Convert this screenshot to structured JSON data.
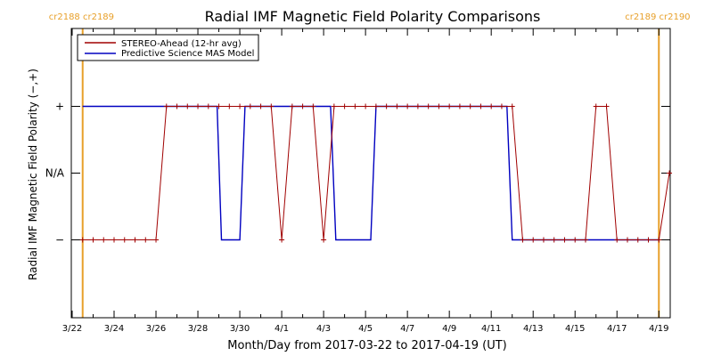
{
  "chart_data": {
    "type": "line",
    "title": "Radial IMF Magnetic Field Polarity Comparisons",
    "xlabel": "Month/Day from 2017-03-22 to 2017-04-19 (UT)",
    "ylabel": "Radial IMF Magnetic Field Polarity (−,+)",
    "x_range": [
      "2017-03-21T23:00",
      "2017-04-19T13:00"
    ],
    "y_levels": [
      "−",
      "N/A",
      "+"
    ],
    "y_range": [
      -2,
      2
    ],
    "x_tick_labels": [
      "3/22",
      "3/24",
      "3/26",
      "3/28",
      "3/30",
      "4/1",
      "4/3",
      "4/5",
      "4/7",
      "4/9",
      "4/11",
      "4/13",
      "4/15",
      "4/17",
      "4/19"
    ],
    "y_tick_labels": [
      "−",
      "N/A",
      "+"
    ],
    "legend_position": "top-left",
    "carrington_markers": [
      {
        "x": "2017-03-22T12:00",
        "label": "cr2188 cr2189",
        "color": "#e8a02a"
      },
      {
        "x": "2017-04-19T00:00",
        "label": "cr2189 cr2190",
        "color": "#e8a02a"
      }
    ],
    "series": [
      {
        "name": "STEREO-Ahead (12-hr avg)",
        "color": "#a00000",
        "marker": "plus",
        "points": [
          [
            "2017-03-22T12:00",
            -1
          ],
          [
            "2017-03-23T00:00",
            -1
          ],
          [
            "2017-03-23T12:00",
            -1
          ],
          [
            "2017-03-24T00:00",
            -1
          ],
          [
            "2017-03-24T12:00",
            -1
          ],
          [
            "2017-03-25T00:00",
            -1
          ],
          [
            "2017-03-25T12:00",
            -1
          ],
          [
            "2017-03-26T00:00",
            -1
          ],
          [
            "2017-03-26T12:00",
            1
          ],
          [
            "2017-03-27T00:00",
            1
          ],
          [
            "2017-03-27T12:00",
            1
          ],
          [
            "2017-03-28T00:00",
            1
          ],
          [
            "2017-03-28T12:00",
            1
          ],
          [
            "2017-03-29T00:00",
            1
          ],
          [
            "2017-03-29T12:00",
            1
          ],
          [
            "2017-03-30T00:00",
            1
          ],
          [
            "2017-03-30T12:00",
            1
          ],
          [
            "2017-03-31T00:00",
            1
          ],
          [
            "2017-03-31T12:00",
            1
          ],
          [
            "2017-04-01T00:00",
            -1
          ],
          [
            "2017-04-01T12:00",
            1
          ],
          [
            "2017-04-02T00:00",
            1
          ],
          [
            "2017-04-02T12:00",
            1
          ],
          [
            "2017-04-03T00:00",
            -1
          ],
          [
            "2017-04-03T12:00",
            1
          ],
          [
            "2017-04-04T00:00",
            1
          ],
          [
            "2017-04-04T12:00",
            1
          ],
          [
            "2017-04-05T00:00",
            1
          ],
          [
            "2017-04-05T12:00",
            1
          ],
          [
            "2017-04-06T00:00",
            1
          ],
          [
            "2017-04-06T12:00",
            1
          ],
          [
            "2017-04-07T00:00",
            1
          ],
          [
            "2017-04-07T12:00",
            1
          ],
          [
            "2017-04-08T00:00",
            1
          ],
          [
            "2017-04-08T12:00",
            1
          ],
          [
            "2017-04-09T00:00",
            1
          ],
          [
            "2017-04-09T12:00",
            1
          ],
          [
            "2017-04-10T00:00",
            1
          ],
          [
            "2017-04-10T12:00",
            1
          ],
          [
            "2017-04-11T00:00",
            1
          ],
          [
            "2017-04-11T12:00",
            1
          ],
          [
            "2017-04-12T00:00",
            1
          ],
          [
            "2017-04-12T12:00",
            -1
          ],
          [
            "2017-04-13T00:00",
            -1
          ],
          [
            "2017-04-13T12:00",
            -1
          ],
          [
            "2017-04-14T00:00",
            -1
          ],
          [
            "2017-04-14T12:00",
            -1
          ],
          [
            "2017-04-15T00:00",
            -1
          ],
          [
            "2017-04-15T12:00",
            -1
          ],
          [
            "2017-04-16T00:00",
            1
          ],
          [
            "2017-04-16T12:00",
            1
          ],
          [
            "2017-04-17T00:00",
            -1
          ],
          [
            "2017-04-17T12:00",
            -1
          ],
          [
            "2017-04-18T00:00",
            -1
          ],
          [
            "2017-04-18T12:00",
            -1
          ],
          [
            "2017-04-19T00:00",
            -1
          ],
          [
            "2017-04-19T12:00",
            0
          ]
        ]
      },
      {
        "name": "Predictive Science MAS Model",
        "color": "#0000c0",
        "marker": "none",
        "points": [
          [
            "2017-03-22T12:00",
            1
          ],
          [
            "2017-03-28T22:00",
            1
          ],
          [
            "2017-03-29T03:00",
            -1
          ],
          [
            "2017-03-30T00:00",
            -1
          ],
          [
            "2017-03-30T06:00",
            1
          ],
          [
            "2017-04-03T08:00",
            1
          ],
          [
            "2017-04-03T14:00",
            -1
          ],
          [
            "2017-04-05T06:00",
            -1
          ],
          [
            "2017-04-05T12:00",
            1
          ],
          [
            "2017-04-11T18:00",
            1
          ],
          [
            "2017-04-12T00:00",
            -1
          ],
          [
            "2017-04-19T00:00",
            -1
          ]
        ]
      }
    ]
  }
}
